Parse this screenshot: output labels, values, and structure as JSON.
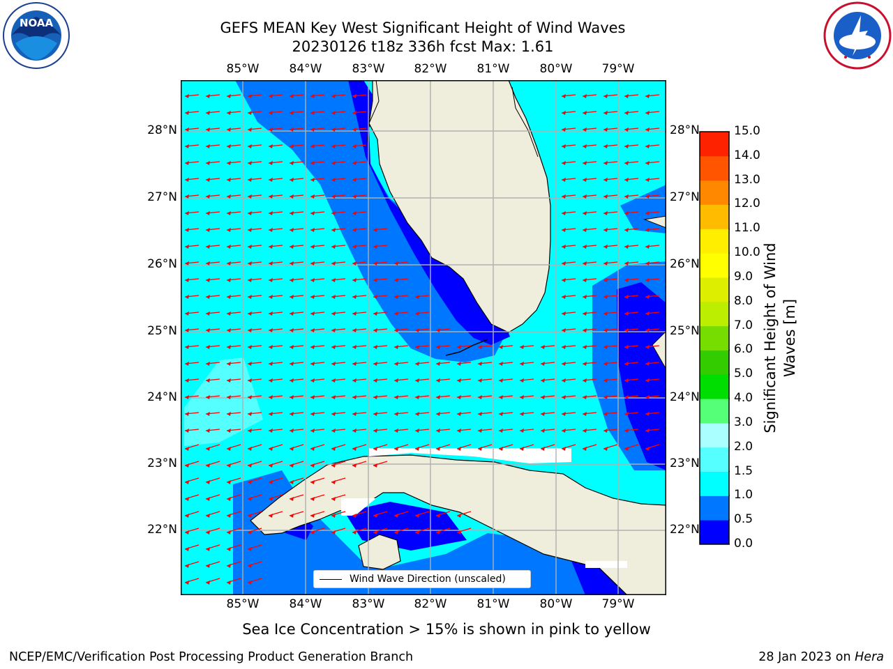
{
  "title_line1": "GEFS MEAN Key West Significant Height of Wind Waves",
  "title_line2": "20230126 t18z 336h fcst   Max: 1.61",
  "lon_labels": [
    "85°W",
    "84°W",
    "83°W",
    "82°W",
    "81°W",
    "80°W",
    "79°W"
  ],
  "lat_labels": [
    "28°N",
    "27°N",
    "26°N",
    "25°N",
    "24°N",
    "23°N",
    "22°N"
  ],
  "colorbar": {
    "title": "Significant Height of Wind Waves [m]",
    "ticks": [
      "15.0",
      "14.0",
      "13.0",
      "12.0",
      "11.0",
      "10.0",
      "9.0",
      "8.0",
      "7.0",
      "6.0",
      "5.0",
      "4.0",
      "3.0",
      "2.0",
      "1.5",
      "1.0",
      "0.5",
      "0.0"
    ],
    "colors_bottom_to_top": [
      "#0000ff",
      "#0077ff",
      "#00ffff",
      "#55ffff",
      "#aaffff",
      "#55ff77",
      "#00dd00",
      "#33cc00",
      "#77dd00",
      "#bbee00",
      "#ddee00",
      "#ffff00",
      "#ffee00",
      "#ffbb00",
      "#ff8800",
      "#ff5500",
      "#ff2200"
    ]
  },
  "legend_label": "Wind Wave Direction (unscaled)",
  "footnote": "Sea Ice Concentration > 15% is shown in pink to yellow",
  "footer_left": "NCEP/EMC/Verification Post Processing Product Generation Branch",
  "footer_right_date": "28 Jan 2023 on",
  "footer_right_host": "Hera",
  "logo_left_text": "NOAA",
  "colors": {
    "ocean_low": "#00ffff",
    "ocean_mid": "#0077ff",
    "ocean_deep": "#0000ff",
    "land": "#efeedc",
    "arrow": "#ff0000",
    "grid": "#b0b0b0"
  }
}
